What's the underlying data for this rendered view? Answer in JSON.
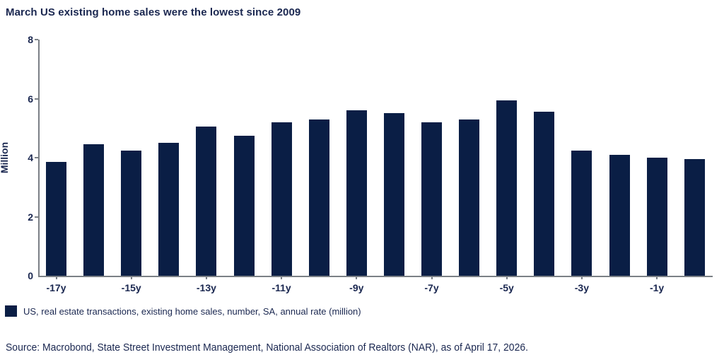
{
  "title": "March US existing home sales were the lowest since 2009",
  "colors": {
    "bar": "#0a1e45",
    "text_navy": "#1a2750",
    "axis_gray": "#7b8086"
  },
  "chart_data": {
    "type": "bar",
    "title": "March US existing home sales were the lowest since 2009",
    "xlabel": "",
    "ylabel": "Million",
    "ylim": [
      0,
      8
    ],
    "yticks": [
      0,
      2,
      4,
      6,
      8
    ],
    "grid": false,
    "legend_position": "bottom-left",
    "categories": [
      "-17y",
      "-16y",
      "-15y",
      "-14y",
      "-13y",
      "-12y",
      "-11y",
      "-10y",
      "-9y",
      "-8y",
      "-7y",
      "-6y",
      "-5y",
      "-4y",
      "-3y",
      "-2y",
      "-1y",
      "0y"
    ],
    "x_tick_labels": [
      "-17y",
      "",
      "-15y",
      "",
      "-13y",
      "",
      "-11y",
      "",
      "-9y",
      "",
      "-7y",
      "",
      "-5y",
      "",
      "-3y",
      "",
      "-1y",
      ""
    ],
    "series": [
      {
        "name": "US, real estate transactions, existing home sales, number, SA, annual rate (million)",
        "values": [
          3.85,
          4.45,
          4.25,
          4.5,
          5.05,
          4.75,
          5.2,
          5.3,
          5.6,
          5.5,
          5.2,
          5.3,
          5.95,
          5.55,
          4.25,
          4.1,
          4.0,
          3.95
        ]
      }
    ]
  },
  "legend": {
    "label": "US, real estate transactions, existing home sales, number, SA, annual rate (million)"
  },
  "source": "Source: Macrobond, State Street Investment Management, National Association of Realtors (NAR), as of April 17, 2026."
}
